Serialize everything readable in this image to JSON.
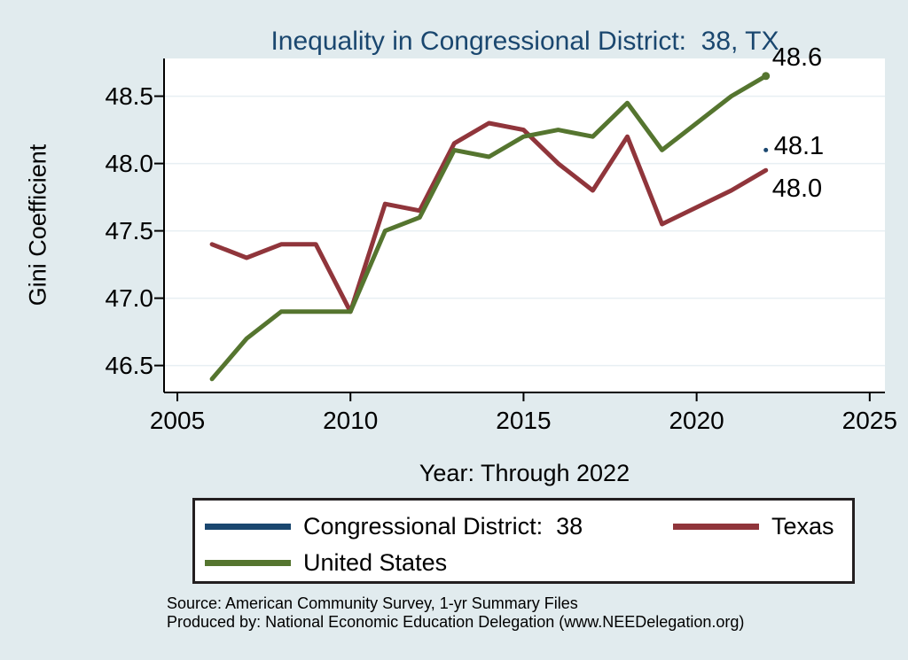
{
  "chart": {
    "title": "Inequality in Congressional District:  38, TX",
    "ylabel": "Gini Coefficient",
    "xlabel": "Year: Through 2022"
  },
  "legend": {
    "items": [
      {
        "id": "cd38",
        "label": "Congressional District:  38",
        "color": "#1a476f"
      },
      {
        "id": "texas",
        "label": "Texas",
        "color": "#90353b"
      },
      {
        "id": "us",
        "label": "United States",
        "color": "#55752f"
      }
    ]
  },
  "source": {
    "line1": "Source: American Community Survey, 1-yr Summary Files",
    "line2": "Produced by: National Economic Education Delegation (www.NEEDelegation.org)"
  },
  "chart_data": {
    "type": "line",
    "title": "Inequality in Congressional District:  38, TX",
    "xlabel": "Year: Through 2022",
    "ylabel": "Gini Coefficient",
    "xlim": [
      2004.615,
      2025.44
    ],
    "ylim": [
      46.3,
      48.78
    ],
    "xticks": [
      2005,
      2010,
      2015,
      2020,
      2025
    ],
    "yticks": [
      46.5,
      47.0,
      47.5,
      48.0,
      48.5
    ],
    "grid": "horizontal",
    "legend_position": "bottom",
    "plot_bg": "#ffffff",
    "grid_color": "#e8eff3",
    "axis_color": "#000000",
    "line_width": 5,
    "series": [
      {
        "id": "cd38",
        "name": "Congressional District:  38",
        "color": "#1a476f",
        "x": [
          2022
        ],
        "values": [
          48.1
        ],
        "marker_size": 2.5,
        "end_label": "48.1",
        "label_dx": 9,
        "label_dy": -4
      },
      {
        "id": "texas",
        "name": "Texas",
        "color": "#90353b",
        "x": [
          2006,
          2007,
          2008,
          2009,
          2010,
          2011,
          2012,
          2013,
          2014,
          2015,
          2016,
          2017,
          2018,
          2019,
          2021,
          2022
        ],
        "values": [
          47.4,
          47.3,
          47.4,
          47.4,
          46.9,
          47.7,
          47.65,
          48.15,
          48.3,
          48.25,
          48.0,
          47.8,
          48.2,
          47.55,
          47.8,
          47.95
        ],
        "marker_size": 0,
        "end_label": "48.0",
        "label_dx": 7,
        "label_dy": 21
      },
      {
        "id": "us",
        "name": "United States",
        "color": "#55752f",
        "x": [
          2006,
          2007,
          2008,
          2009,
          2010,
          2011,
          2012,
          2013,
          2014,
          2015,
          2016,
          2017,
          2018,
          2019,
          2021,
          2022
        ],
        "values": [
          46.4,
          46.7,
          46.9,
          46.9,
          46.9,
          47.5,
          47.6,
          48.1,
          48.05,
          48.2,
          48.25,
          48.2,
          48.45,
          48.1,
          48.5,
          48.65
        ],
        "marker_size": 4.5,
        "end_label": "48.6",
        "label_dx": 7,
        "label_dy": -21
      }
    ]
  }
}
